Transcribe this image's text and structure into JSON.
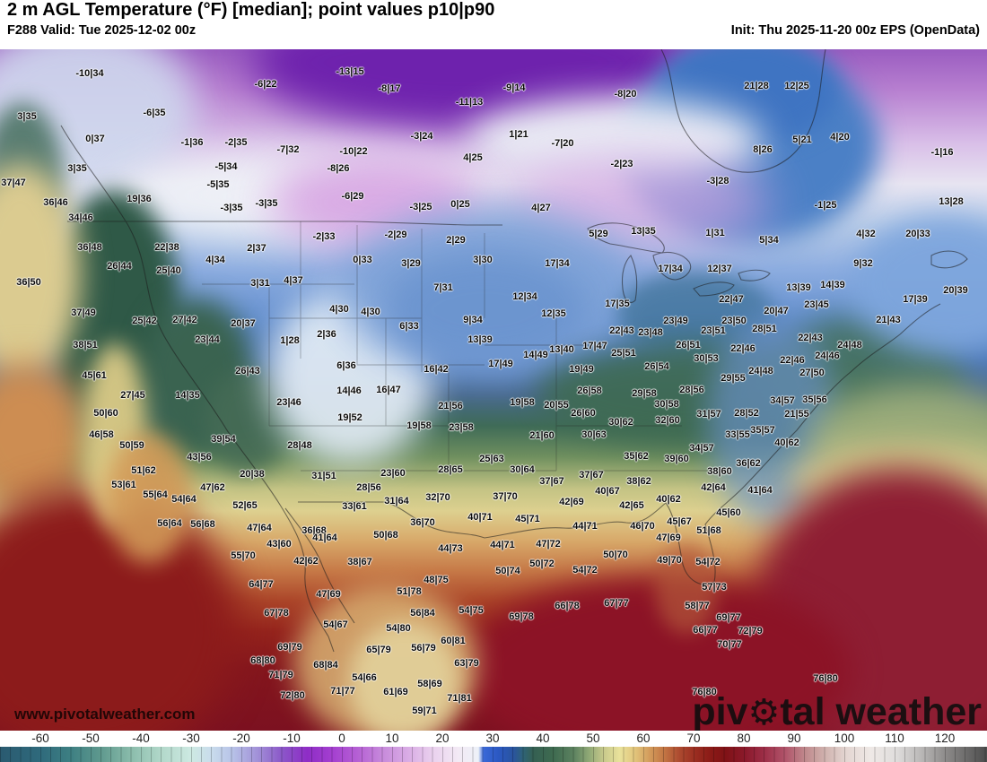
{
  "header": {
    "title": "2 m AGL Temperature (°F) [median]; point values p10|p90",
    "subtitle": "F288 Valid: Tue 2025-12-02 00z",
    "init": "Init: Thu 2025-11-20 00z EPS (OpenData)"
  },
  "watermark": {
    "url": "www.pivotalweather.com",
    "logo_pre": "piv",
    "logo_gear": "⚙",
    "logo_post": "tal weather"
  },
  "colorbar": {
    "ticks": [
      -60,
      -50,
      -40,
      -30,
      -20,
      -10,
      0,
      10,
      20,
      30,
      40,
      50,
      60,
      70,
      80,
      90,
      100,
      110,
      120
    ],
    "stops": [
      {
        "v": -68,
        "c": "#2a5a70"
      },
      {
        "v": -60,
        "c": "#2f6a7c"
      },
      {
        "v": -54,
        "c": "#3d7f82"
      },
      {
        "v": -48,
        "c": "#5f998e"
      },
      {
        "v": -42,
        "c": "#8abcab"
      },
      {
        "v": -36,
        "c": "#b2d8ca"
      },
      {
        "v": -30,
        "c": "#cde9e2"
      },
      {
        "v": -26,
        "c": "#c9dcec"
      },
      {
        "v": -22,
        "c": "#b8c4e8"
      },
      {
        "v": -17,
        "c": "#a292d8"
      },
      {
        "v": -12,
        "c": "#8b57c8"
      },
      {
        "v": -7,
        "c": "#8e2dc6"
      },
      {
        "v": -2,
        "c": "#a43fd0"
      },
      {
        "v": 3,
        "c": "#b560d4"
      },
      {
        "v": 8,
        "c": "#c78adb"
      },
      {
        "v": 13,
        "c": "#d9ace5"
      },
      {
        "v": 18,
        "c": "#ead1ee"
      },
      {
        "v": 23,
        "c": "#f3eaf5"
      },
      {
        "v": 27,
        "c": "#edf1f8"
      },
      {
        "v": 28,
        "c": "#3a69d8"
      },
      {
        "v": 31,
        "c": "#2b58c2"
      },
      {
        "v": 34,
        "c": "#2a549e"
      },
      {
        "v": 36,
        "c": "#2f6374"
      },
      {
        "v": 38,
        "c": "#356052"
      },
      {
        "v": 42,
        "c": "#3f6b50"
      },
      {
        "v": 46,
        "c": "#5d8260"
      },
      {
        "v": 49,
        "c": "#90a976"
      },
      {
        "v": 52,
        "c": "#c9ca8c"
      },
      {
        "v": 55,
        "c": "#e9e29b"
      },
      {
        "v": 58,
        "c": "#e2c67d"
      },
      {
        "v": 61,
        "c": "#d39b5b"
      },
      {
        "v": 64,
        "c": "#c27443"
      },
      {
        "v": 67,
        "c": "#ac492f"
      },
      {
        "v": 70,
        "c": "#9b2e21"
      },
      {
        "v": 73,
        "c": "#8b1b17"
      },
      {
        "v": 76,
        "c": "#801216"
      },
      {
        "v": 80,
        "c": "#8b192b"
      },
      {
        "v": 84,
        "c": "#9e3049"
      },
      {
        "v": 88,
        "c": "#b1556b"
      },
      {
        "v": 92,
        "c": "#c08a8d"
      },
      {
        "v": 96,
        "c": "#d1b4b0"
      },
      {
        "v": 100,
        "c": "#e4d6d2"
      },
      {
        "v": 105,
        "c": "#efe9e6"
      },
      {
        "v": 110,
        "c": "#dfdddc"
      },
      {
        "v": 115,
        "c": "#b9b7b6"
      },
      {
        "v": 120,
        "c": "#8b8988"
      },
      {
        "v": 128,
        "c": "#4c4c4c"
      }
    ]
  },
  "map": {
    "point_values": [
      [
        100,
        82,
        "-10|34"
      ],
      [
        296,
        94,
        "-6|22"
      ],
      [
        390,
        80,
        "-13|15"
      ],
      [
        434,
        99,
        "-8|17"
      ],
      [
        523,
        114,
        "-11|13"
      ],
      [
        30,
        130,
        "3|35"
      ],
      [
        172,
        126,
        "-6|35"
      ],
      [
        106,
        155,
        "0|37"
      ],
      [
        214,
        159,
        "-1|36"
      ],
      [
        263,
        159,
        "-2|35"
      ],
      [
        321,
        167,
        "-7|32"
      ],
      [
        394,
        169,
        "-10|22"
      ],
      [
        470,
        152,
        "-3|24"
      ],
      [
        527,
        176,
        "4|25"
      ],
      [
        252,
        186,
        "-5|34"
      ],
      [
        377,
        188,
        "-8|26"
      ],
      [
        573,
        98,
        "-9|14"
      ],
      [
        697,
        105,
        "-8|20"
      ],
      [
        843,
        96,
        "21|28"
      ],
      [
        888,
        96,
        "12|25"
      ],
      [
        578,
        150,
        "1|21"
      ],
      [
        627,
        160,
        "-7|20"
      ],
      [
        894,
        156,
        "5|21"
      ],
      [
        936,
        153,
        "4|20"
      ],
      [
        1050,
        170,
        "-1|16"
      ],
      [
        850,
        167,
        "8|26"
      ],
      [
        693,
        183,
        "-2|23"
      ],
      [
        86,
        188,
        "3|35"
      ],
      [
        15,
        204,
        "37|47"
      ],
      [
        243,
        206,
        "-5|35"
      ],
      [
        155,
        222,
        "19|36"
      ],
      [
        62,
        226,
        "36|46"
      ],
      [
        258,
        232,
        "-3|35"
      ],
      [
        297,
        227,
        "-3|35"
      ],
      [
        393,
        219,
        "-6|29"
      ],
      [
        469,
        231,
        "-3|25"
      ],
      [
        513,
        228,
        "0|25"
      ],
      [
        90,
        243,
        "34|46"
      ],
      [
        186,
        276,
        "22|38"
      ],
      [
        361,
        264,
        "-2|33"
      ],
      [
        441,
        262,
        "-2|29"
      ],
      [
        508,
        268,
        "2|29"
      ],
      [
        100,
        276,
        "36|48"
      ],
      [
        286,
        277,
        "2|37"
      ],
      [
        240,
        290,
        "4|34"
      ],
      [
        404,
        290,
        "0|33"
      ],
      [
        458,
        294,
        "3|29"
      ],
      [
        538,
        290,
        "3|30"
      ],
      [
        133,
        297,
        "26|44"
      ],
      [
        188,
        302,
        "25|40"
      ],
      [
        32,
        315,
        "36|50"
      ],
      [
        290,
        316,
        "3|31"
      ],
      [
        327,
        313,
        "4|37"
      ],
      [
        494,
        321,
        "7|31"
      ],
      [
        603,
        232,
        "4|27"
      ],
      [
        800,
        202,
        "-3|28"
      ],
      [
        920,
        229,
        "-1|25"
      ],
      [
        1060,
        225,
        "13|28"
      ],
      [
        667,
        261,
        "5|29"
      ],
      [
        717,
        258,
        "13|35"
      ],
      [
        797,
        260,
        "1|31"
      ],
      [
        965,
        261,
        "4|32"
      ],
      [
        1023,
        261,
        "20|33"
      ],
      [
        857,
        268,
        "5|34"
      ],
      [
        621,
        294,
        "17|34"
      ],
      [
        747,
        300,
        "17|34"
      ],
      [
        802,
        300,
        "12|37"
      ],
      [
        962,
        294,
        "9|32"
      ],
      [
        890,
        321,
        "13|39"
      ],
      [
        928,
        318,
        "14|39"
      ],
      [
        1065,
        324,
        "20|39"
      ],
      [
        93,
        349,
        "37|49"
      ],
      [
        161,
        358,
        "25|42"
      ],
      [
        206,
        357,
        "27|42"
      ],
      [
        271,
        361,
        "20|37"
      ],
      [
        378,
        345,
        "4|30"
      ],
      [
        413,
        348,
        "4|30"
      ],
      [
        456,
        364,
        "6|33"
      ],
      [
        231,
        379,
        "23|44"
      ],
      [
        323,
        380,
        "1|28"
      ],
      [
        364,
        373,
        "2|36"
      ],
      [
        95,
        385,
        "38|51"
      ],
      [
        105,
        419,
        "45|61"
      ],
      [
        276,
        414,
        "26|43"
      ],
      [
        386,
        408,
        "6|36"
      ],
      [
        486,
        412,
        "16|42"
      ],
      [
        389,
        436,
        "14|46"
      ],
      [
        433,
        435,
        "16|47"
      ],
      [
        148,
        441,
        "27|45"
      ],
      [
        209,
        441,
        "14|35"
      ],
      [
        322,
        449,
        "23|46"
      ],
      [
        502,
        453,
        "21|56"
      ],
      [
        527,
        357,
        "9|34"
      ],
      [
        535,
        379,
        "13|39"
      ],
      [
        558,
        406,
        "17|49"
      ],
      [
        585,
        331,
        "12|34"
      ],
      [
        688,
        339,
        "17|35"
      ],
      [
        815,
        334,
        "22|47"
      ],
      [
        910,
        340,
        "23|45"
      ],
      [
        1020,
        334,
        "17|39"
      ],
      [
        617,
        350,
        "12|35"
      ],
      [
        753,
        358,
        "23|49"
      ],
      [
        865,
        347,
        "20|47"
      ],
      [
        818,
        358,
        "23|50"
      ],
      [
        852,
        367,
        "28|51"
      ],
      [
        990,
        357,
        "21|43"
      ],
      [
        693,
        369,
        "22|43"
      ],
      [
        725,
        371,
        "23|48"
      ],
      [
        795,
        369,
        "23|51"
      ],
      [
        903,
        377,
        "22|43"
      ],
      [
        947,
        385,
        "24|48"
      ],
      [
        663,
        386,
        "17|47"
      ],
      [
        767,
        385,
        "26|51"
      ],
      [
        626,
        390,
        "13|40"
      ],
      [
        597,
        396,
        "14|49"
      ],
      [
        695,
        394,
        "25|51"
      ],
      [
        828,
        389,
        "22|46"
      ],
      [
        922,
        397,
        "24|46"
      ],
      [
        787,
        400,
        "30|53"
      ],
      [
        883,
        402,
        "22|46"
      ],
      [
        732,
        409,
        "26|54"
      ],
      [
        648,
        412,
        "19|49"
      ],
      [
        848,
        414,
        "24|48"
      ],
      [
        905,
        416,
        "27|50"
      ],
      [
        817,
        422,
        "29|55"
      ],
      [
        657,
        436,
        "26|58"
      ],
      [
        718,
        439,
        "29|58"
      ],
      [
        771,
        435,
        "28|56"
      ],
      [
        872,
        447,
        "34|57"
      ],
      [
        908,
        446,
        "35|56"
      ],
      [
        582,
        449,
        "19|58"
      ],
      [
        620,
        452,
        "20|55"
      ],
      [
        743,
        451,
        "30|58"
      ],
      [
        118,
        461,
        "50|60"
      ],
      [
        390,
        466,
        "19|52"
      ],
      [
        467,
        475,
        "19|58"
      ],
      [
        514,
        477,
        "23|58"
      ],
      [
        113,
        485,
        "46|58"
      ],
      [
        249,
        490,
        "39|54"
      ],
      [
        147,
        497,
        "50|59"
      ],
      [
        334,
        497,
        "28|48"
      ],
      [
        222,
        510,
        "43|56"
      ],
      [
        160,
        525,
        "51|62"
      ],
      [
        281,
        529,
        "20|38"
      ],
      [
        361,
        531,
        "31|51"
      ],
      [
        438,
        528,
        "23|60"
      ],
      [
        502,
        524,
        "28|65"
      ],
      [
        138,
        541,
        "53|61"
      ],
      [
        237,
        544,
        "47|62"
      ],
      [
        411,
        544,
        "28|56"
      ],
      [
        173,
        552,
        "55|64"
      ],
      [
        205,
        557,
        "54|64"
      ],
      [
        488,
        555,
        "32|70"
      ],
      [
        442,
        559,
        "31|64"
      ],
      [
        273,
        564,
        "52|65"
      ],
      [
        395,
        565,
        "33|61"
      ],
      [
        189,
        584,
        "56|64"
      ],
      [
        226,
        585,
        "56|68"
      ],
      [
        289,
        589,
        "47|64"
      ],
      [
        471,
        583,
        "36|70"
      ],
      [
        350,
        592,
        "36|68"
      ],
      [
        650,
        461,
        "26|60"
      ],
      [
        692,
        471,
        "30|62"
      ],
      [
        744,
        469,
        "32|60"
      ],
      [
        790,
        462,
        "31|57"
      ],
      [
        832,
        461,
        "28|52"
      ],
      [
        888,
        462,
        "21|55"
      ],
      [
        604,
        486,
        "21|60"
      ],
      [
        662,
        485,
        "30|63"
      ],
      [
        822,
        485,
        "33|55"
      ],
      [
        850,
        480,
        "35|57"
      ],
      [
        877,
        494,
        "40|62"
      ],
      [
        782,
        500,
        "34|57"
      ],
      [
        709,
        509,
        "35|62"
      ],
      [
        754,
        512,
        "39|60"
      ],
      [
        834,
        517,
        "36|62"
      ],
      [
        548,
        512,
        "25|63"
      ],
      [
        582,
        524,
        "30|64"
      ],
      [
        659,
        530,
        "37|67"
      ],
      [
        802,
        526,
        "38|60"
      ],
      [
        615,
        537,
        "37|67"
      ],
      [
        712,
        537,
        "38|62"
      ],
      [
        677,
        548,
        "40|67"
      ],
      [
        847,
        547,
        "41|64"
      ],
      [
        795,
        544,
        "42|64"
      ],
      [
        563,
        554,
        "37|70"
      ],
      [
        637,
        560,
        "42|69"
      ],
      [
        704,
        564,
        "42|65"
      ],
      [
        745,
        557,
        "40|62"
      ],
      [
        812,
        572,
        "45|60"
      ],
      [
        588,
        579,
        "45|71"
      ],
      [
        652,
        587,
        "44|71"
      ],
      [
        716,
        587,
        "46|70"
      ],
      [
        757,
        582,
        "45|67"
      ],
      [
        790,
        592,
        "51|68"
      ],
      [
        535,
        577,
        "40|71"
      ],
      [
        362,
        600,
        "41|64"
      ],
      [
        311,
        607,
        "43|60"
      ],
      [
        430,
        597,
        "50|68"
      ],
      [
        502,
        612,
        "44|73"
      ],
      [
        271,
        620,
        "55|70"
      ],
      [
        341,
        626,
        "42|62"
      ],
      [
        401,
        627,
        "38|67"
      ],
      [
        486,
        647,
        "48|75"
      ],
      [
        291,
        652,
        "64|77"
      ],
      [
        456,
        660,
        "51|78"
      ],
      [
        366,
        663,
        "47|69"
      ],
      [
        308,
        684,
        "67|78"
      ],
      [
        471,
        684,
        "56|84"
      ],
      [
        525,
        681,
        "54|75"
      ],
      [
        374,
        697,
        "54|67"
      ],
      [
        444,
        701,
        "54|80"
      ],
      [
        505,
        715,
        "60|81"
      ],
      [
        323,
        722,
        "69|79"
      ],
      [
        422,
        725,
        "65|79"
      ],
      [
        472,
        723,
        "56|79"
      ],
      [
        560,
        608,
        "44|71"
      ],
      [
        611,
        607,
        "47|72"
      ],
      [
        745,
        600,
        "47|69"
      ],
      [
        686,
        619,
        "50|70"
      ],
      [
        746,
        625,
        "49|70"
      ],
      [
        789,
        627,
        "54|72"
      ],
      [
        604,
        629,
        "50|72"
      ],
      [
        566,
        637,
        "50|74"
      ],
      [
        652,
        636,
        "54|72"
      ],
      [
        796,
        655,
        "57|73"
      ],
      [
        632,
        676,
        "66|78"
      ],
      [
        687,
        673,
        "67|77"
      ],
      [
        777,
        676,
        "58|77"
      ],
      [
        581,
        688,
        "69|78"
      ],
      [
        812,
        689,
        "69|77"
      ],
      [
        786,
        703,
        "66|77"
      ],
      [
        836,
        704,
        "72|79"
      ],
      [
        813,
        719,
        "70|77"
      ],
      [
        293,
        737,
        "68|80"
      ],
      [
        363,
        742,
        "68|84"
      ],
      [
        520,
        740,
        "63|79"
      ],
      [
        313,
        753,
        "71|79"
      ],
      [
        406,
        756,
        "54|66"
      ],
      [
        479,
        763,
        "58|69"
      ],
      [
        326,
        776,
        "72|80"
      ],
      [
        382,
        771,
        "71|77"
      ],
      [
        441,
        772,
        "61|69"
      ],
      [
        512,
        779,
        "71|81"
      ],
      [
        473,
        793,
        "59|71"
      ],
      [
        785,
        772,
        "76|80"
      ],
      [
        920,
        757,
        "76|80"
      ]
    ]
  }
}
